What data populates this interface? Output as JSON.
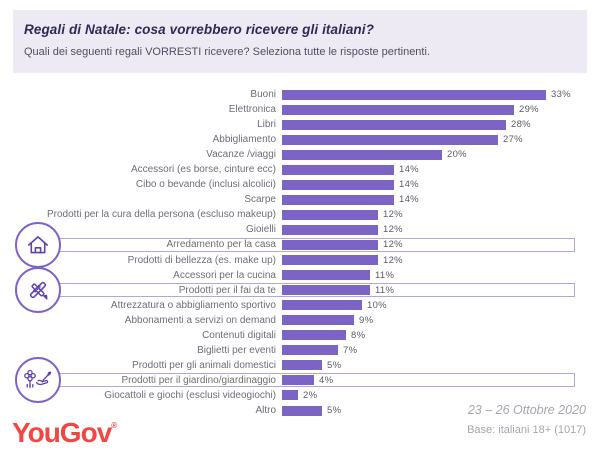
{
  "header": {
    "title": "Regali di Natale: cosa vorrebbero ricevere gli italiani?",
    "subtitle": "Quali dei seguenti regali VORRESTI ricevere? Seleziona tutte le risposte pertinenti."
  },
  "chart_data": {
    "type": "bar",
    "orientation": "horizontal",
    "title": "Regali di Natale: cosa vorrebbero ricevere gli italiani?",
    "subtitle": "Quali dei seguenti regali VORRESTI ricevere? Seleziona tutte le risposte pertinenti.",
    "categories": [
      "Buoni",
      "Elettronica",
      "Libri",
      "Abbigliamento",
      "Vacanze /viaggi",
      "Accessori (es borse, cinture ecc)",
      "Cibo o bevande (inclusi alcolici)",
      "Scarpe",
      "Prodotti per la cura della persona (escluso makeup)",
      "Gioielli",
      "Arredamento per la casa",
      "Prodotti di bellezza (es. make up)",
      "Accessori per la cucina",
      "Prodotti per il fai da te",
      "Attrezzatura o abbigliamento sportivo",
      "Abbonamenti a servizi on demand",
      "Contenuti digitali",
      "Biglietti per eventi",
      "Prodotti per gli animali domestici",
      "Prodotti per il giardino/giardinaggio",
      "Giocattoli e giochi (esclusi videogiochi)",
      "Altro"
    ],
    "values": [
      33,
      29,
      28,
      27,
      20,
      14,
      14,
      14,
      12,
      12,
      12,
      12,
      11,
      11,
      10,
      9,
      8,
      7,
      5,
      4,
      2,
      5
    ],
    "value_suffix": "%",
    "xlim": [
      0,
      35
    ],
    "grid": false,
    "legend": false,
    "highlighted": [
      {
        "index": 10,
        "icon": "house-icon"
      },
      {
        "index": 13,
        "icon": "diy-tools-icon"
      },
      {
        "index": 19,
        "icon": "gardening-icon"
      }
    ],
    "bar_color": "#7c64c4",
    "highlight_border_color": "#b3a6dc"
  },
  "footer": {
    "logo_text": "YouGov",
    "logo_mark": "®",
    "date_range": "23 – 26 Ottobre 2020",
    "base_note": "Base: italiani 18+ (1017)"
  },
  "colors": {
    "header_background": "#edeaf4",
    "title_text": "#2e2a54",
    "bar": "#7c64c4",
    "highlight_border": "#b3a6dc",
    "icon_circle_border": "#7d63c9",
    "logo_red": "#f04742",
    "footer_gray": "#a6a5ad"
  }
}
